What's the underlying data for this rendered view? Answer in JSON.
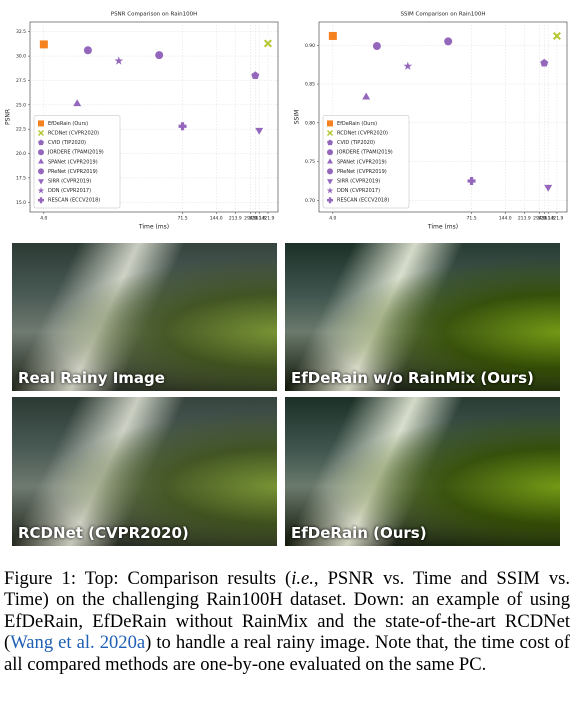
{
  "chart_data": [
    {
      "type": "scatter",
      "title": "PSNR Comparison on Rain100H",
      "x_label": "Time (ms)",
      "y_label": "PSNR",
      "xscale": "log",
      "grid": true,
      "legend": "lower left",
      "xlim": [
        3,
        520
      ],
      "xticks": [
        {
          "value": 4,
          "label": "4.0"
        },
        71.5,
        {
          "value": 144,
          "label": "144.0"
        },
        213.9,
        {
          "value": 294,
          "label": "294.0"
        },
        324.1,
        351.8,
        421.9
      ],
      "ylim": [
        14,
        33.5
      ],
      "yticks": [
        32.5,
        {
          "value": 30,
          "label": "30.0"
        },
        27.5,
        {
          "value": 25,
          "label": "25.0"
        },
        22.5,
        {
          "value": 20,
          "label": "20.0"
        },
        17.5,
        {
          "value": 15,
          "label": "15.0"
        }
      ],
      "series": [
        {
          "name": "EfDeRain (Ours)",
          "color": "#f5821f",
          "marker": "square",
          "x": [
            4
          ],
          "values": [
            31.2
          ]
        },
        {
          "name": "RCDNet (CVPR2020)",
          "color": "#b5c730",
          "marker": "x",
          "x": [
            421.9
          ],
          "values": [
            31.3
          ]
        },
        {
          "name": "CVID (TIP2020)",
          "color": "#9467bd",
          "marker": "pentagon",
          "x": [
            324.1
          ],
          "values": [
            28.0
          ]
        },
        {
          "name": "JORDERE (TPAMI2019)",
          "color": "#9467bd",
          "marker": "circle",
          "x": [
            10
          ],
          "values": [
            30.6
          ]
        },
        {
          "name": "SPANet (CVPR2019)",
          "color": "#9467bd",
          "marker": "triangle",
          "x": [
            8
          ],
          "values": [
            25.1
          ]
        },
        {
          "name": "PReNet (CVPR2019)",
          "color": "#9467bd",
          "marker": "circle",
          "x": [
            44
          ],
          "values": [
            30.1
          ]
        },
        {
          "name": "SIRR (CVPR2019)",
          "color": "#9467bd",
          "marker": "triangle-down",
          "x": [
            351.8
          ],
          "values": [
            22.4
          ]
        },
        {
          "name": "DDN (CVPR2017)",
          "color": "#9467bd",
          "marker": "star",
          "x": [
            19
          ],
          "values": [
            29.5
          ]
        },
        {
          "name": "RESCAN (ECCV2018)",
          "color": "#9467bd",
          "marker": "plus",
          "x": [
            71.5
          ],
          "values": [
            22.8
          ]
        }
      ]
    },
    {
      "type": "scatter",
      "title": "SSIM Comparison on Rain100H",
      "x_label": "Time (ms)",
      "y_label": "SSIM",
      "xscale": "log",
      "grid": true,
      "legend": "lower left",
      "xlim": [
        3,
        520
      ],
      "xticks": [
        {
          "value": 4,
          "label": "4.0"
        },
        71.5,
        {
          "value": 144,
          "label": "144.0"
        },
        213.9,
        {
          "value": 294,
          "label": "294.0"
        },
        324.1,
        351.8,
        421.9
      ],
      "ylim": [
        0.685,
        0.93
      ],
      "yticks": [
        {
          "value": 0.9,
          "label": "0.90"
        },
        0.85,
        {
          "value": 0.8,
          "label": "0.80"
        },
        0.75,
        {
          "value": 0.7,
          "label": "0.70"
        }
      ],
      "series": [
        {
          "name": "EfDeRain (Ours)",
          "color": "#f5821f",
          "marker": "square",
          "x": [
            4
          ],
          "values": [
            0.912
          ]
        },
        {
          "name": "RCDNet (CVPR2020)",
          "color": "#b5c730",
          "marker": "x",
          "x": [
            421.9
          ],
          "values": [
            0.912
          ]
        },
        {
          "name": "CVID (TIP2020)",
          "color": "#9467bd",
          "marker": "pentagon",
          "x": [
            324.1
          ],
          "values": [
            0.877
          ]
        },
        {
          "name": "JORDERE (TPAMI2019)",
          "color": "#9467bd",
          "marker": "circle",
          "x": [
            10
          ],
          "values": [
            0.899
          ]
        },
        {
          "name": "SPANet (CVPR2019)",
          "color": "#9467bd",
          "marker": "triangle",
          "x": [
            8
          ],
          "values": [
            0.833
          ]
        },
        {
          "name": "PReNet (CVPR2019)",
          "color": "#9467bd",
          "marker": "circle",
          "x": [
            44
          ],
          "values": [
            0.905
          ]
        },
        {
          "name": "SIRR (CVPR2019)",
          "color": "#9467bd",
          "marker": "triangle-down",
          "x": [
            351.8
          ],
          "values": [
            0.717
          ]
        },
        {
          "name": "DDN (CVPR2017)",
          "color": "#9467bd",
          "marker": "star",
          "x": [
            19
          ],
          "values": [
            0.873
          ]
        },
        {
          "name": "RESCAN (ECCV2018)",
          "color": "#9467bd",
          "marker": "plus",
          "x": [
            71.5
          ],
          "values": [
            0.725
          ]
        }
      ]
    }
  ],
  "panels": [
    {
      "label": "Real Rainy Image"
    },
    {
      "label": "EfDeRain w/o RainMix (Ours)"
    },
    {
      "label": "RCDNet (CVPR2020)"
    },
    {
      "label": "EfDeRain (Ours)"
    }
  ],
  "caption": {
    "parts": [
      "Figure 1: Top: Comparison results (",
      "i.e.",
      ", PSNR vs. Time and SSIM vs. Time) on the challenging Rain100H dataset. Down: an example of using EfDeRain, EfDeRain without RainMix and the state-of-the-art RCDNet (",
      "Wang et al. 2020a",
      ") to handle a real rainy image. Note that, the time cost of all compared methods are one-by-one evaluated on the same PC."
    ]
  }
}
